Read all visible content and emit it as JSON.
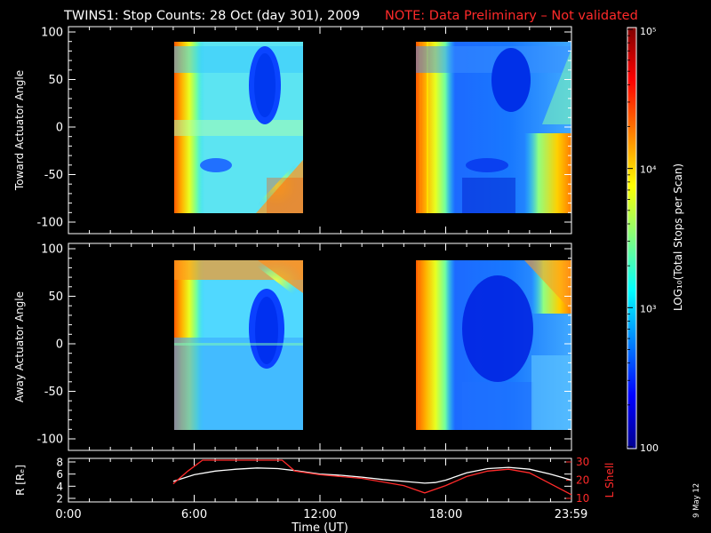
{
  "title": "TWINS1: Stop Counts: 28 Oct (day 301), 2009",
  "note": "NOTE: Data Preliminary – Not validated",
  "date_stamp": "9 May 12",
  "colors": {
    "note": "#ff2a2a",
    "white_line": "#ffffff",
    "red_line": "#ff2a2a"
  },
  "chart_data": [
    {
      "type": "heatmap",
      "panel": "top",
      "ylabel": "Toward Actuator Angle",
      "ylim": [
        -100,
        100
      ],
      "yticks": [
        "100",
        "50",
        "0",
        "-50",
        "-100"
      ],
      "xlim_hours": [
        0,
        24
      ],
      "data_intervals_hours": [
        [
          5.0,
          11.5
        ],
        [
          17.4,
          23.99
        ]
      ]
    },
    {
      "type": "heatmap",
      "panel": "middle",
      "ylabel": "Away Actuator Angle",
      "ylim": [
        -100,
        100
      ],
      "yticks": [
        "100",
        "50",
        "0",
        "-50",
        "-100"
      ],
      "xlim_hours": [
        0,
        24
      ],
      "data_intervals_hours": [
        [
          5.0,
          11.5
        ],
        [
          17.4,
          23.99
        ]
      ]
    },
    {
      "type": "line",
      "panel": "bottom",
      "ylabel": "R [Rₑ]",
      "ylabel_right": "L Shell",
      "ylim": [
        2,
        8
      ],
      "yticks": [
        "8",
        "6",
        "4",
        "2"
      ],
      "ylim_right": [
        10,
        30
      ],
      "yticks_right": [
        "30",
        "20",
        "10"
      ],
      "xlabel": "Time (UT)",
      "xticks": [
        "0:00",
        "6:00",
        "12:00",
        "18:00",
        "23:59"
      ],
      "xtick_hours": [
        0,
        6,
        12,
        18,
        23.98
      ],
      "series": [
        {
          "axis": "left",
          "color": "#ffffff",
          "x": [
            5.0,
            6.0,
            7.0,
            8.0,
            9.0,
            10.0,
            11.0,
            12.0,
            13.0,
            14.0,
            15.0,
            16.0,
            17.0,
            17.5,
            18.0,
            19.0,
            20.0,
            21.0,
            22.0,
            23.0,
            24.0
          ],
          "y": [
            4.8,
            5.9,
            6.5,
            6.8,
            7.0,
            6.9,
            6.5,
            6.0,
            5.8,
            5.5,
            5.1,
            4.8,
            4.5,
            4.6,
            5.0,
            6.2,
            6.9,
            7.1,
            6.8,
            6.0,
            5.0
          ]
        },
        {
          "axis": "right",
          "color": "#ff2a2a",
          "x": [
            5.0,
            5.7,
            6.4,
            10.2,
            10.8,
            12.0,
            14.0,
            16.0,
            17.0,
            18.0,
            19.0,
            20.0,
            21.0,
            22.0,
            23.0,
            24.0
          ],
          "y": [
            18.0,
            25.0,
            31.0,
            31.0,
            25.0,
            23.0,
            21.0,
            17.0,
            13.0,
            17.0,
            22.0,
            25.0,
            26.0,
            24.0,
            18.0,
            12.0
          ]
        }
      ]
    }
  ],
  "colorbar": {
    "label": "LOG₁₀(Total Stops per Scan)",
    "ticks": [
      {
        "text": "10⁵",
        "value": 100000
      },
      {
        "text": "10⁴",
        "value": 10000
      },
      {
        "text": "10³",
        "value": 1000
      },
      {
        "text": "100",
        "value": 100
      }
    ],
    "range": [
      100,
      100000
    ]
  }
}
